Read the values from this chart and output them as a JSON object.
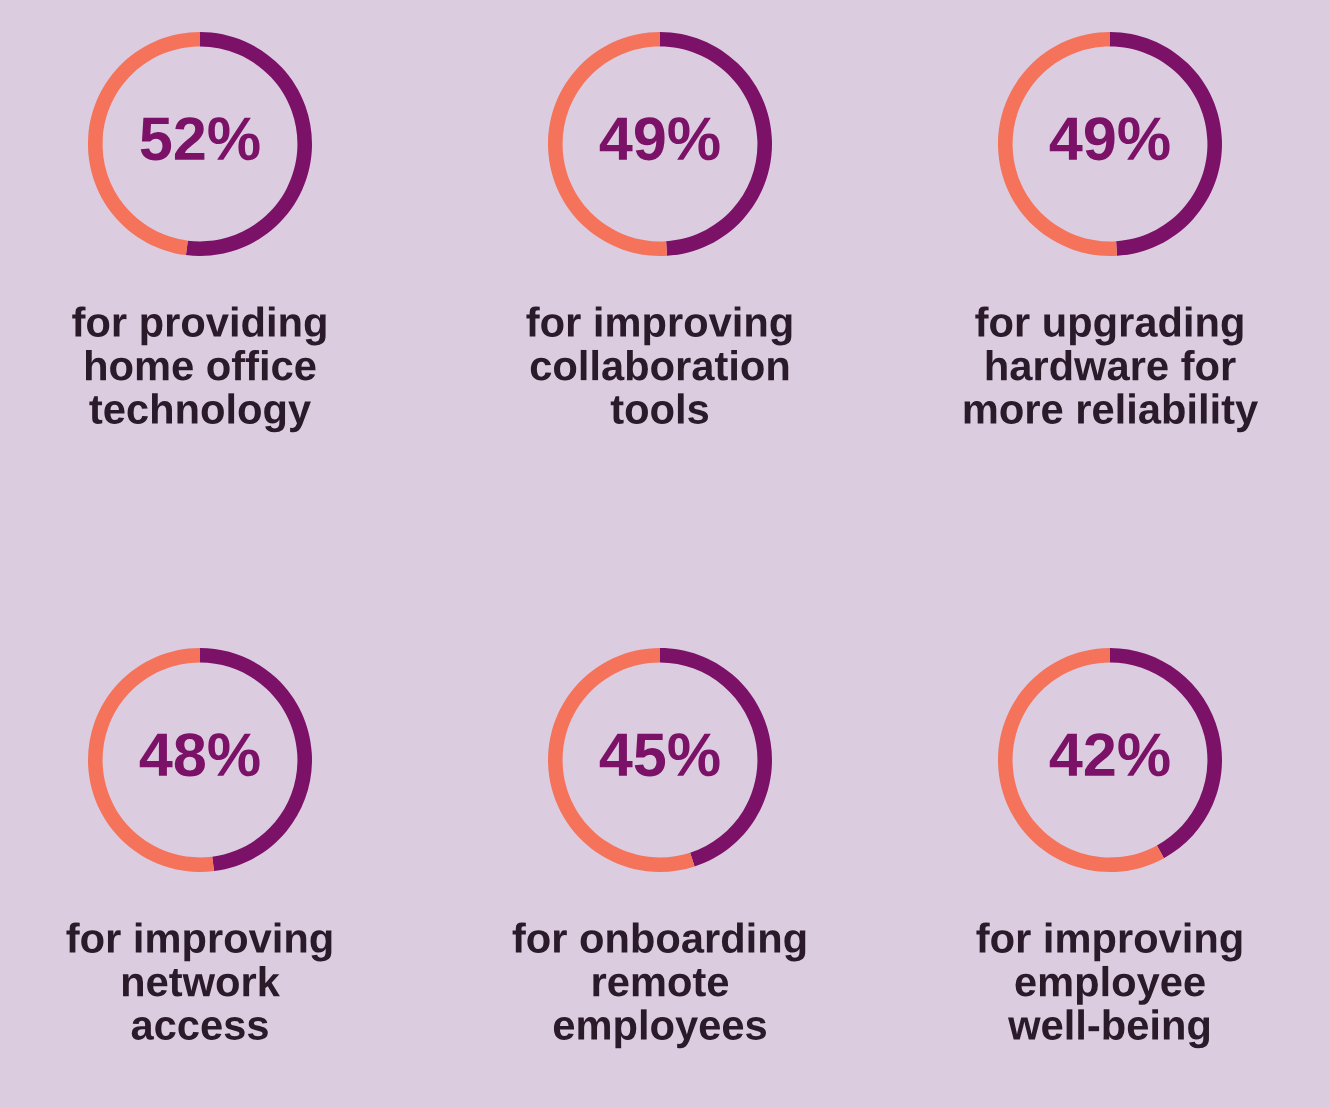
{
  "chart_data": [
    {
      "type": "donut",
      "title": "for providing\nhome office\ntechnology",
      "categories": [
        null,
        null
      ],
      "values": [
        52,
        48
      ],
      "colors": [
        "#7b1268",
        "#f4735a"
      ],
      "value_labels": [
        "52%",
        null
      ]
    },
    {
      "type": "donut",
      "title": "for improving\ncollaboration\ntools",
      "categories": [
        null,
        null
      ],
      "values": [
        49,
        51
      ],
      "colors": [
        "#7b1268",
        "#f4735a"
      ],
      "value_labels": [
        "49%",
        null
      ]
    },
    {
      "type": "donut",
      "title": "for upgrading\nhardware for\nmore reliability",
      "categories": [
        null,
        null
      ],
      "values": [
        49,
        51
      ],
      "colors": [
        "#7b1268",
        "#f4735a"
      ],
      "value_labels": [
        "49%",
        null
      ]
    },
    {
      "type": "donut",
      "title": "for improving\nnetwork\naccess",
      "categories": [
        null,
        null
      ],
      "values": [
        48,
        52
      ],
      "colors": [
        "#7b1268",
        "#f4735a"
      ],
      "value_labels": [
        "48%",
        null
      ]
    },
    {
      "type": "donut",
      "title": "for onboarding\nremote\nemployees",
      "categories": [
        null,
        null
      ],
      "values": [
        45,
        55
      ],
      "colors": [
        "#7b1268",
        "#f4735a"
      ],
      "value_labels": [
        "45%",
        null
      ]
    },
    {
      "type": "donut",
      "title": "for improving\nemployee\nwell-being",
      "categories": [
        null,
        null
      ],
      "values": [
        42,
        58
      ],
      "colors": [
        "#7b1268",
        "#f4735a"
      ],
      "value_labels": [
        "42%",
        null
      ]
    }
  ]
}
